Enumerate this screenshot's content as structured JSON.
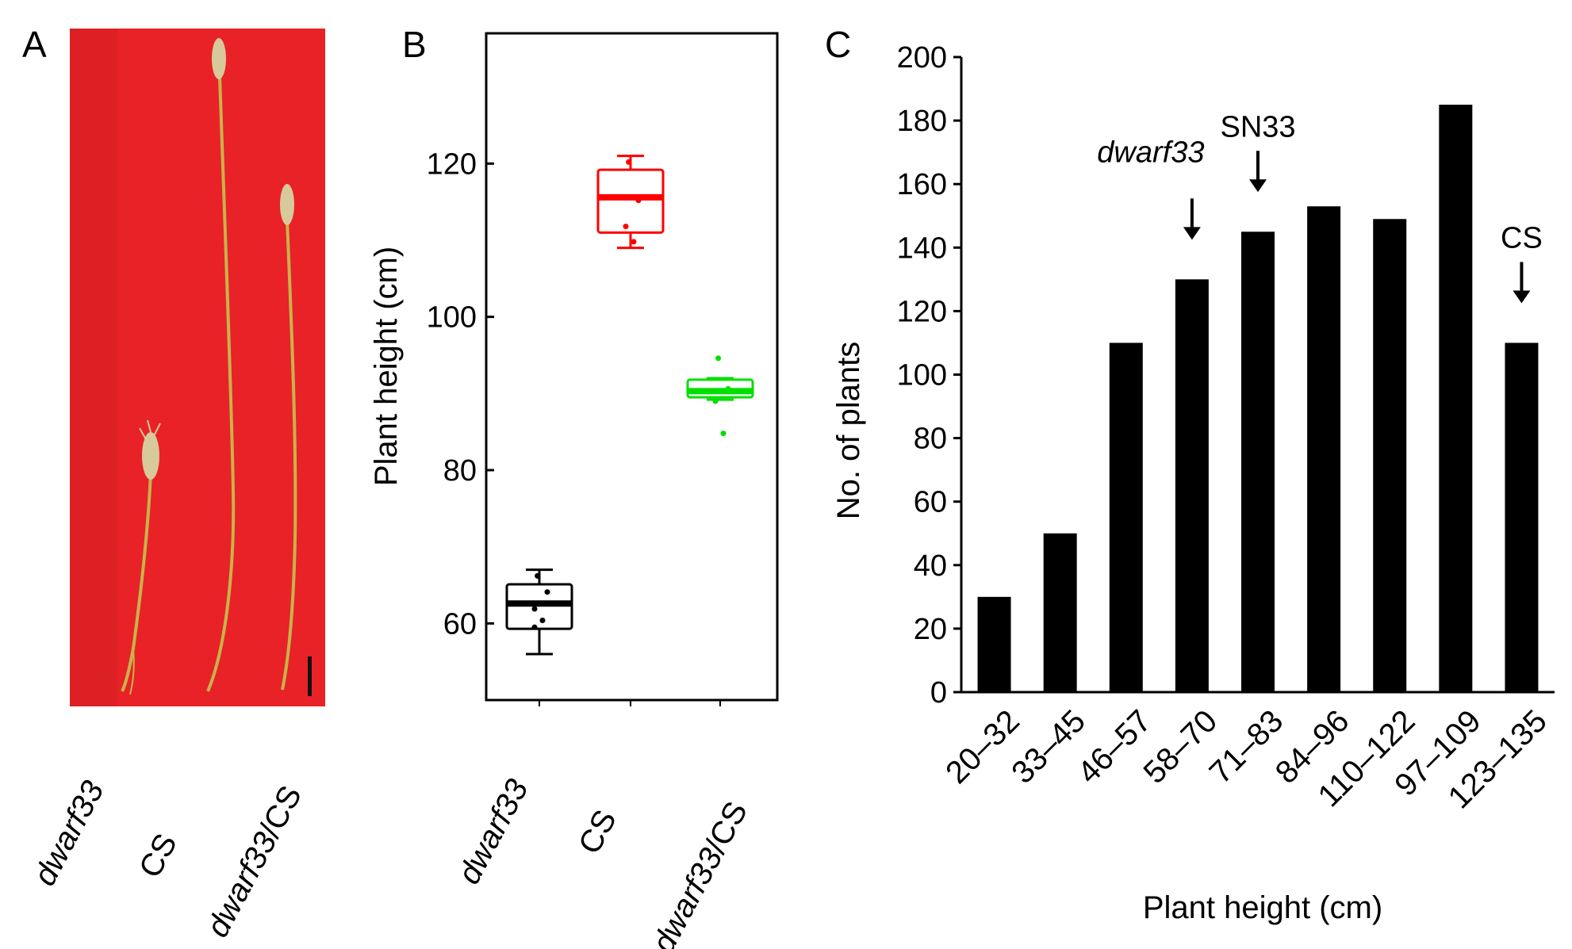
{
  "panels": {
    "a": {
      "letter": "A",
      "labels": [
        "dwarf33",
        "CS",
        "dwarf33/CS"
      ],
      "background_color": "#e8191e",
      "stem_color": "#c9b24a",
      "spike_color": "#d8c99a",
      "scale_bar_color": "#111111"
    },
    "b": {
      "letter": "B"
    },
    "c": {
      "letter": "C"
    }
  },
  "chart_data": [
    {
      "type": "box",
      "panel": "B",
      "ylabel": "Plant height (cm)",
      "ylim": [
        50,
        137
      ],
      "yticks": [
        60,
        80,
        100,
        120
      ],
      "categories": [
        "dwarf33",
        "CS",
        "dwarf33/CS"
      ],
      "boxes": [
        {
          "name": "dwarf33",
          "color": "#000000",
          "min": 56,
          "q1": 59.3,
          "median": 62.6,
          "q3": 65.1,
          "max": 67,
          "points": [
            66.2,
            64.1,
            61.9,
            60.4,
            59.5
          ]
        },
        {
          "name": "CS",
          "color": "#ff0000",
          "min": 109,
          "q1": 111,
          "median": 115.6,
          "q3": 119.2,
          "max": 121,
          "points": [
            120.2,
            115.2,
            111.8,
            109.8
          ]
        },
        {
          "name": "dwarf33/CS",
          "color": "#00e000",
          "min": 89.2,
          "q1": 89.5,
          "median": 90.3,
          "q3": 91.8,
          "max": 92,
          "points": [
            94.6,
            90.6,
            89,
            84.8
          ]
        }
      ]
    },
    {
      "type": "bar",
      "panel": "C",
      "xlabel": "Plant height (cm)",
      "ylabel": "No. of plants",
      "ylim": [
        0,
        200
      ],
      "yticks": [
        0,
        20,
        40,
        60,
        80,
        100,
        120,
        140,
        160,
        180,
        200
      ],
      "categories": [
        "20–32",
        "33–45",
        "46–57",
        "58–70",
        "71–83",
        "84–96",
        "110–122",
        "97–109",
        "123–135"
      ],
      "values": [
        30,
        50,
        110,
        130,
        145,
        153,
        149,
        185,
        110
      ],
      "bar_color": "#000000",
      "annotations": [
        {
          "text": "dwarf33",
          "category_index": 3,
          "italic": true
        },
        {
          "text": "SN33",
          "category_index": 4,
          "italic": false
        },
        {
          "text": "CS",
          "category_index": 8,
          "italic": false
        }
      ]
    }
  ]
}
